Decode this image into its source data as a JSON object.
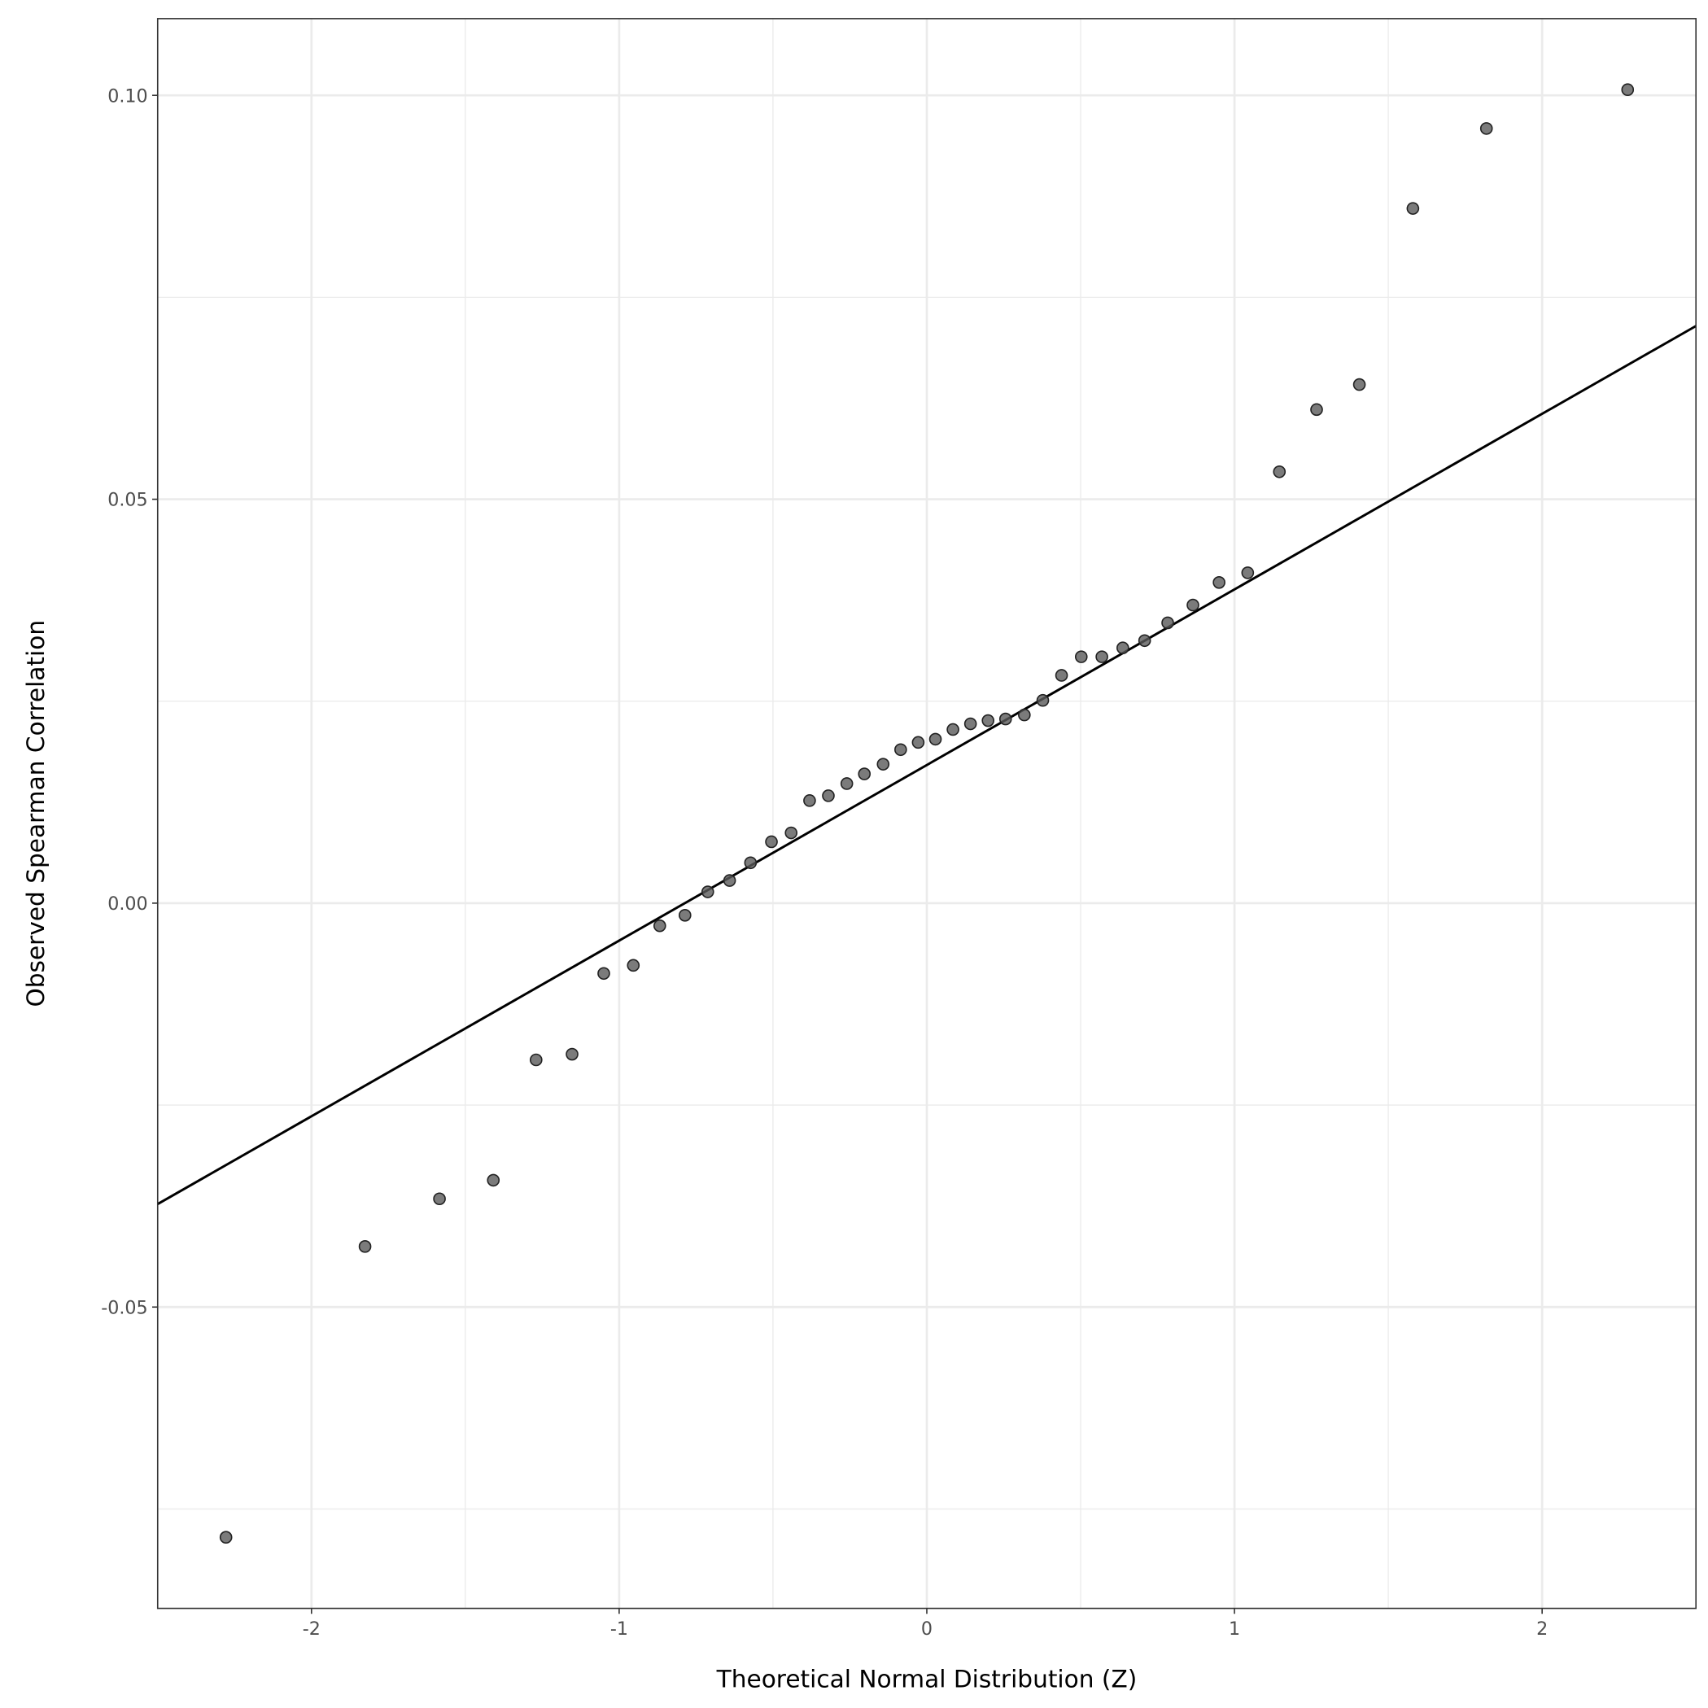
{
  "chart_data": {
    "type": "scatter",
    "x_label": "Theoretical Normal Distribution (Z)",
    "y_label": "Observed Spearman Correlation",
    "xlim": [
      -2.5,
      2.5
    ],
    "ylim": [
      -0.0873,
      0.1095
    ],
    "xticks": [
      -2,
      -1,
      0,
      1,
      2
    ],
    "yticks": [
      {
        "value": -0.05,
        "label": "-0.05"
      },
      {
        "value": 0,
        "label": "0.00"
      },
      {
        "value": 0.05,
        "label": "0.05"
      },
      {
        "value": 0.1,
        "label": "0.10"
      }
    ],
    "x_minor_grid": [
      -1.5,
      -0.5,
      0.5,
      1.5
    ],
    "y_minor_grid": [
      -0.075,
      -0.025,
      0.025,
      0.075
    ],
    "grid": true,
    "point_color": "#5a5a5a",
    "reference_line": {
      "slope": 0.02174,
      "intercept": 0.0171,
      "color": "#000000"
    },
    "x": [
      -2.278,
      -1.826,
      -1.584,
      -1.409,
      -1.27,
      -1.153,
      -1.05,
      -0.954,
      -0.868,
      -0.786,
      -0.712,
      -0.641,
      -0.573,
      -0.505,
      -0.441,
      -0.381,
      -0.32,
      -0.26,
      -0.203,
      -0.142,
      -0.085,
      -0.028,
      0.028,
      0.085,
      0.142,
      0.199,
      0.256,
      0.317,
      0.377,
      0.438,
      0.502,
      0.569,
      0.637,
      0.708,
      0.783,
      0.865,
      0.95,
      1.043,
      1.146,
      1.267,
      1.406,
      1.58,
      1.819,
      2.278
    ],
    "values": [
      -0.0785,
      -0.0425,
      -0.0366,
      -0.0343,
      -0.0194,
      -0.0187,
      -0.0087,
      -0.0077,
      -0.0028,
      -0.0015,
      0.0014,
      0.0028,
      0.005,
      0.0076,
      0.0087,
      0.0127,
      0.0133,
      0.0148,
      0.016,
      0.0172,
      0.019,
      0.0199,
      0.0203,
      0.0215,
      0.0222,
      0.0226,
      0.0228,
      0.0233,
      0.0251,
      0.0282,
      0.0305,
      0.0305,
      0.0316,
      0.0325,
      0.0347,
      0.0369,
      0.0397,
      0.0409,
      0.0534,
      0.0611,
      0.0642,
      0.086,
      0.0959,
      0.1007
    ]
  }
}
